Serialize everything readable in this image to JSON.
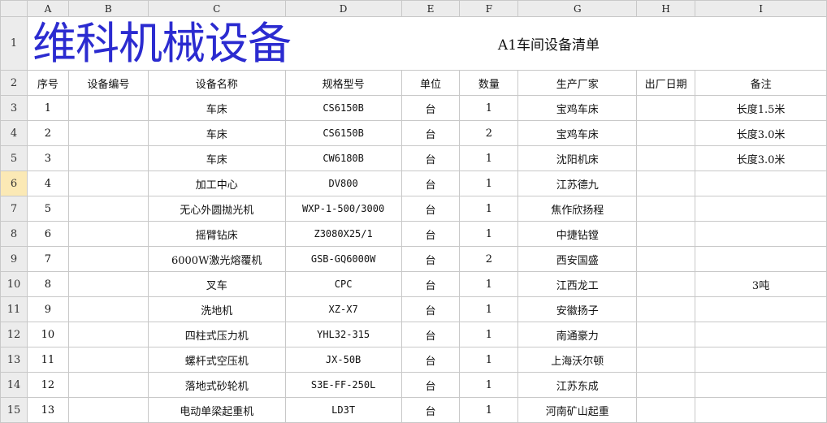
{
  "watermark": "维科机械设备",
  "columns": [
    "A",
    "B",
    "C",
    "D",
    "E",
    "F",
    "G",
    "H",
    "I"
  ],
  "title": "A1车间设备清单",
  "headers": [
    "序号",
    "设备编号",
    "设备名称",
    "规格型号",
    "单位",
    "数量",
    "生产厂家",
    "出厂日期",
    "备注"
  ],
  "selected_row": "6",
  "rows": [
    {
      "n": "3",
      "a": "1",
      "c": "车床",
      "d": "CS6150B",
      "e": "台",
      "f": "1",
      "g": "宝鸡车床",
      "i": "长度1.5米"
    },
    {
      "n": "4",
      "a": "2",
      "c": "车床",
      "d": "CS6150B",
      "e": "台",
      "f": "2",
      "g": "宝鸡车床",
      "i": "长度3.0米"
    },
    {
      "n": "5",
      "a": "3",
      "c": "车床",
      "d": "CW6180B",
      "e": "台",
      "f": "1",
      "g": "沈阳机床",
      "i": "长度3.0米"
    },
    {
      "n": "6",
      "a": "4",
      "c": "加工中心",
      "d": "DV800",
      "e": "台",
      "f": "1",
      "g": "江苏德九",
      "i": ""
    },
    {
      "n": "7",
      "a": "5",
      "c": "无心外圆抛光机",
      "d": "WXP-1-500/3000",
      "e": "台",
      "f": "1",
      "g": "焦作欣扬程",
      "i": ""
    },
    {
      "n": "8",
      "a": "6",
      "c": "摇臂钻床",
      "d": "Z3080X25/1",
      "e": "台",
      "f": "1",
      "g": "中捷钻镗",
      "i": ""
    },
    {
      "n": "9",
      "a": "7",
      "c": "6000W激光熔覆机",
      "d": "GSB-GQ6000W",
      "e": "台",
      "f": "2",
      "g": "西安国盛",
      "i": ""
    },
    {
      "n": "10",
      "a": "8",
      "c": "叉车",
      "d": "CPC",
      "e": "台",
      "f": "1",
      "g": "江西龙工",
      "i": "3吨"
    },
    {
      "n": "11",
      "a": "9",
      "c": "洗地机",
      "d": "XZ-X7",
      "e": "台",
      "f": "1",
      "g": "安徽扬子",
      "i": ""
    },
    {
      "n": "12",
      "a": "10",
      "c": "四柱式压力机",
      "d": "YHL32-315",
      "e": "台",
      "f": "1",
      "g": "南通豪力",
      "i": ""
    },
    {
      "n": "13",
      "a": "11",
      "c": "螺杆式空压机",
      "d": "JX-50B",
      "e": "台",
      "f": "1",
      "g": "上海沃尔顿",
      "i": ""
    },
    {
      "n": "14",
      "a": "12",
      "c": "落地式砂轮机",
      "d": "S3E-FF-250L",
      "e": "台",
      "f": "1",
      "g": "江苏东成",
      "i": ""
    },
    {
      "n": "15",
      "a": "13",
      "c": "电动单梁起重机",
      "d": "LD3T",
      "e": "台",
      "f": "1",
      "g": "河南矿山起重",
      "i": ""
    }
  ]
}
